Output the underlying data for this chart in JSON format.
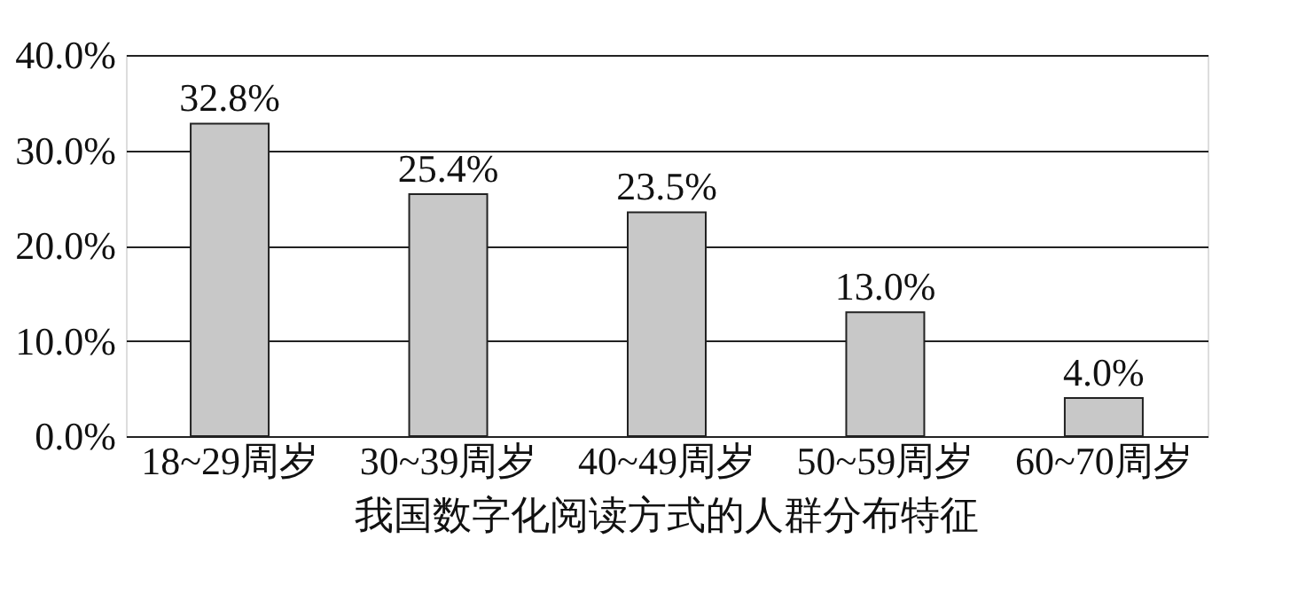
{
  "chart_data": {
    "type": "bar",
    "title": "我国数字化阅读方式的人群分布特征",
    "categories": [
      "18~29周岁",
      "30~39周岁",
      "40~49周岁",
      "50~59周岁",
      "60~70周岁"
    ],
    "values": [
      32.8,
      25.4,
      23.5,
      13.0,
      4.0
    ],
    "value_labels": [
      "32.8%",
      "25.4%",
      "23.5%",
      "13.0%",
      "4.0%"
    ],
    "color": "#c8c8c8",
    "ylim": [
      0,
      40
    ],
    "yticks": [
      {
        "value": 0,
        "label": "0.0%"
      },
      {
        "value": 10,
        "label": "10.0%"
      },
      {
        "value": 20,
        "label": "20.0%"
      },
      {
        "value": 30,
        "label": "30.0%"
      },
      {
        "value": 40,
        "label": "40.0%"
      }
    ],
    "grid": "y"
  }
}
